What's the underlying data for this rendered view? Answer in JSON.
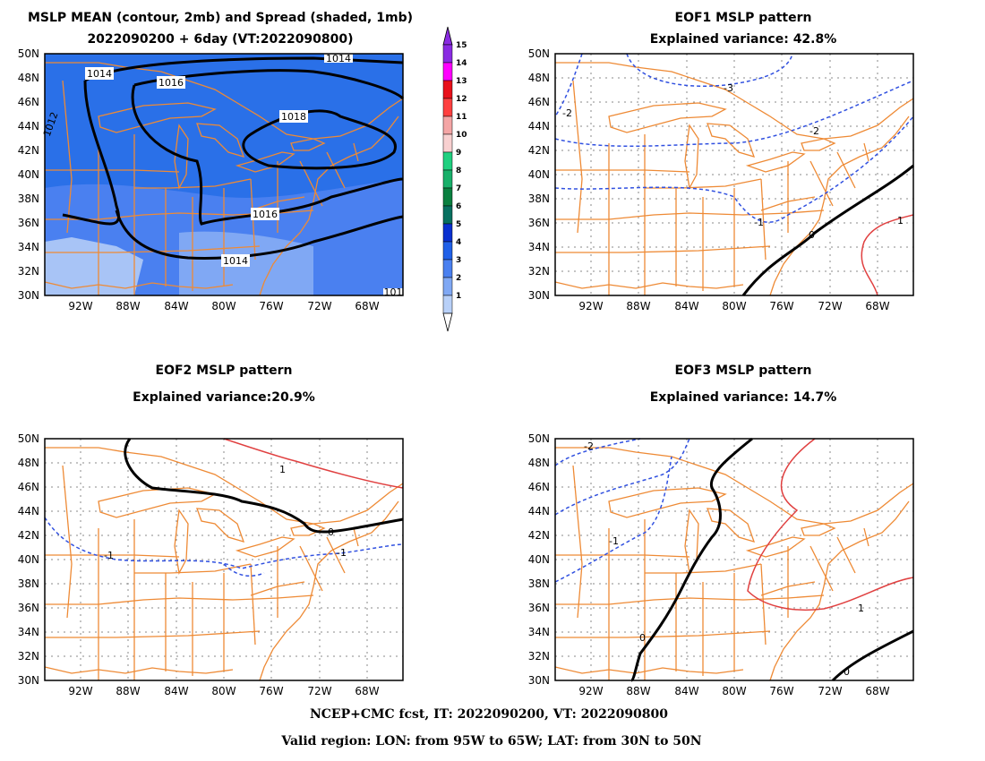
{
  "panels": [
    {
      "id": "mean",
      "title_line1": "MSLP MEAN (contour, 2mb) and Spread (shaded, 1mb)",
      "title_line2": "2022090200 + 6day (VT:2022090800)",
      "contour_labels": [
        "1014",
        "1016",
        "1018",
        "1016",
        "1014",
        "1014",
        "1012",
        "101"
      ]
    },
    {
      "id": "eof1",
      "title_line1": "EOF1 MSLP pattern",
      "title_line2": "Explained variance: 42.8%",
      "contour_labels": [
        "-2",
        "-3",
        "-2",
        "-1",
        "0",
        "1"
      ]
    },
    {
      "id": "eof2",
      "title_line1": "EOF2 MSLP pattern",
      "title_line2": "Explained variance:20.9%",
      "contour_labels": [
        "1",
        "0",
        "-1",
        "-1"
      ]
    },
    {
      "id": "eof3",
      "title_line1": "EOF3 MSLP pattern",
      "title_line2": "Explained variance: 14.7%",
      "contour_labels": [
        "-2",
        "-1",
        "0",
        "0",
        "1"
      ]
    }
  ],
  "axes": {
    "lat_labels": [
      "50N",
      "48N",
      "46N",
      "44N",
      "42N",
      "40N",
      "38N",
      "36N",
      "34N",
      "32N",
      "30N"
    ],
    "lon_labels": [
      "92W",
      "88W",
      "84W",
      "80W",
      "76W",
      "72W",
      "68W"
    ]
  },
  "colorbar": {
    "labels": [
      "15",
      "14",
      "13",
      "12",
      "11",
      "10",
      "9",
      "8",
      "7",
      "6",
      "5",
      "4",
      "3",
      "2",
      "1"
    ],
    "colors": [
      "#8a2be2",
      "#ff00ff",
      "#e8101a",
      "#ff4040",
      "#f4a5a5",
      "#f8d0d0",
      "#20d080",
      "#18b06a",
      "#0a8040",
      "#087060",
      "#0a30d0",
      "#2060e8",
      "#4a80f0",
      "#80a8f4",
      "#b8d0f8"
    ]
  },
  "colors": {
    "coastline": "#ee8a35",
    "positive_contour": "#e04040",
    "negative_contour": "#3050e0",
    "zero_contour": "#000000",
    "spread_shades": [
      "#4a80f0",
      "#2a70e8",
      "#80a8f4",
      "#a8c4f6"
    ]
  },
  "footer": {
    "line1": "NCEP+CMC fcst, IT: 2022090200, VT: 2022090800",
    "line2": "Valid region: LON: from 95W to 65W; LAT: from 30N to 50N"
  }
}
